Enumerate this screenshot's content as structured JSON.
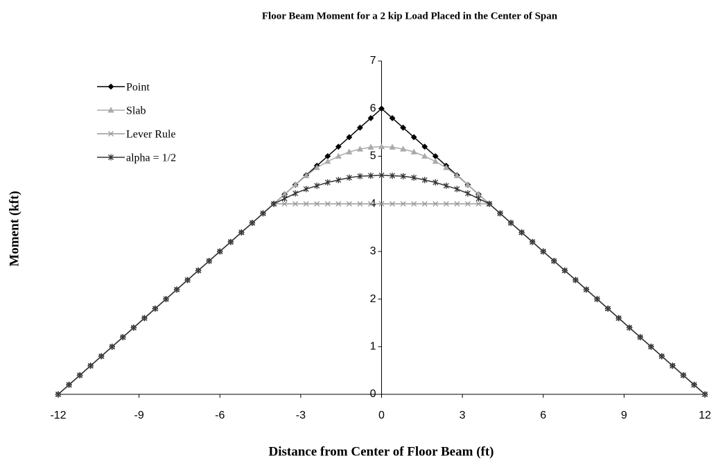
{
  "chart_data": {
    "type": "line",
    "title": "Floor Beam Moment for a 2 kip Load  Placed in the Center of Span",
    "xlabel": "Distance from Center of Floor Beam (ft)",
    "ylabel": "Moment (kft)",
    "x": [
      -12,
      -11.6,
      -11.2,
      -10.8,
      -10.4,
      -10,
      -9.6,
      -9.2,
      -8.8,
      -8.4,
      -8,
      -7.6,
      -7.2,
      -6.8,
      -6.4,
      -6,
      -5.6,
      -5.2,
      -4.8,
      -4.4,
      -4,
      -3.6,
      -3.2,
      -2.8,
      -2.4,
      -2,
      -1.6,
      -1.2,
      -0.8,
      -0.4,
      0,
      0.4,
      0.8,
      1.2,
      1.6,
      2,
      2.4,
      2.8,
      3.2,
      3.6,
      4,
      4.4,
      4.8,
      5.2,
      5.6,
      6,
      6.4,
      6.8,
      7.2,
      7.6,
      8,
      8.4,
      8.8,
      9.2,
      9.6,
      10,
      10.4,
      10.8,
      11.2,
      11.6,
      12
    ],
    "series": [
      {
        "name": "Point",
        "color": "#000000",
        "marker": "diamond",
        "values": [
          0,
          0.2,
          0.4,
          0.6,
          0.8,
          1,
          1.2,
          1.4,
          1.6,
          1.8,
          2,
          2.2,
          2.4,
          2.6,
          2.8,
          3,
          3.2,
          3.4,
          3.6,
          3.8,
          4,
          4.2,
          4.4,
          4.6,
          4.8,
          5,
          5.2,
          5.4,
          5.6,
          5.8,
          6,
          5.8,
          5.6,
          5.4,
          5.2,
          5,
          4.8,
          4.6,
          4.4,
          4.2,
          4,
          3.8,
          3.6,
          3.4,
          3.2,
          3,
          2.8,
          2.6,
          2.4,
          2.2,
          2,
          1.8,
          1.6,
          1.4,
          1.2,
          1,
          0.8,
          0.6,
          0.4,
          0.2,
          0
        ]
      },
      {
        "name": "Slab",
        "color": "#aaaaaa",
        "marker": "triangle",
        "values": [
          0,
          0.2,
          0.4,
          0.6,
          0.8,
          1,
          1.2,
          1.4,
          1.6,
          1.8,
          2,
          2.2,
          2.4,
          2.6,
          2.8,
          3,
          3.2,
          3.4,
          3.6,
          3.8,
          4,
          4.2,
          4.4,
          4.59,
          4.76,
          4.89,
          5.0,
          5.09,
          5.15,
          5.19,
          5.2,
          5.19,
          5.15,
          5.09,
          5.0,
          4.89,
          4.76,
          4.59,
          4.4,
          4.2,
          4,
          3.8,
          3.6,
          3.4,
          3.2,
          3,
          2.8,
          2.6,
          2.4,
          2.2,
          2,
          1.8,
          1.6,
          1.4,
          1.2,
          1,
          0.8,
          0.6,
          0.4,
          0.2,
          0
        ]
      },
      {
        "name": "Lever Rule",
        "color": "#999999",
        "marker": "x",
        "values": [
          0,
          0.2,
          0.4,
          0.6,
          0.8,
          1,
          1.2,
          1.4,
          1.6,
          1.8,
          2,
          2.2,
          2.4,
          2.6,
          2.8,
          3,
          3.2,
          3.4,
          3.6,
          3.8,
          4,
          4,
          4,
          4,
          4,
          4,
          4,
          4,
          4,
          4,
          4,
          4,
          4,
          4,
          4,
          4,
          4,
          4,
          4,
          4,
          4,
          3.8,
          3.6,
          3.4,
          3.2,
          3,
          2.8,
          2.6,
          2.4,
          2.2,
          2,
          1.8,
          1.6,
          1.4,
          1.2,
          1,
          0.8,
          0.6,
          0.4,
          0.2,
          0
        ]
      },
      {
        "name": "alpha = 1/2",
        "color": "#333333",
        "marker": "star",
        "values": [
          0,
          0.2,
          0.4,
          0.6,
          0.8,
          1,
          1.2,
          1.4,
          1.6,
          1.8,
          2,
          2.2,
          2.4,
          2.6,
          2.8,
          3,
          3.2,
          3.4,
          3.6,
          3.8,
          4,
          4.11,
          4.22,
          4.31,
          4.38,
          4.45,
          4.5,
          4.55,
          4.58,
          4.59,
          4.6,
          4.59,
          4.58,
          4.55,
          4.5,
          4.45,
          4.38,
          4.31,
          4.22,
          4.11,
          4,
          3.8,
          3.6,
          3.4,
          3.2,
          3,
          2.8,
          2.6,
          2.4,
          2.2,
          2,
          1.8,
          1.6,
          1.4,
          1.2,
          1,
          0.8,
          0.6,
          0.4,
          0.2,
          0
        ]
      }
    ],
    "xlim": [
      -12,
      12
    ],
    "xticks": [
      -12,
      -9,
      -6,
      -3,
      0,
      3,
      6,
      9,
      12
    ],
    "ylim": [
      0,
      7
    ],
    "yticks": [
      0,
      1,
      2,
      3,
      4,
      5,
      6,
      7
    ],
    "legend": "upper left",
    "grid": false
  }
}
